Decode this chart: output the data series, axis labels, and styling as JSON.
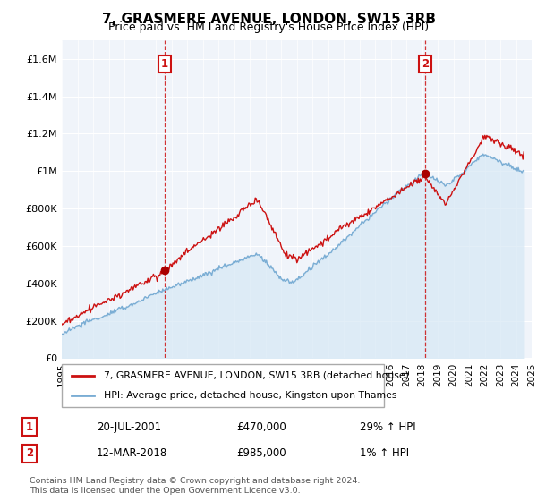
{
  "title": "7, GRASMERE AVENUE, LONDON, SW15 3RB",
  "subtitle": "Price paid vs. HM Land Registry's House Price Index (HPI)",
  "footer": "Contains HM Land Registry data © Crown copyright and database right 2024.\nThis data is licensed under the Open Government Licence v3.0.",
  "legend_line1": "7, GRASMERE AVENUE, LONDON, SW15 3RB (detached house)",
  "legend_line2": "HPI: Average price, detached house, Kingston upon Thames",
  "transaction1_date": "20-JUL-2001",
  "transaction1_price": "£470,000",
  "transaction1_hpi": "29% ↑ HPI",
  "transaction1_x": 2001.55,
  "transaction1_y": 470000,
  "transaction2_date": "12-MAR-2018",
  "transaction2_price": "£985,000",
  "transaction2_hpi": "1% ↑ HPI",
  "transaction2_x": 2018.19,
  "transaction2_y": 985000,
  "hpi_color": "#7aadd4",
  "hpi_fill_color": "#d6e8f5",
  "price_color": "#cc1111",
  "vline_color": "#cc1111",
  "dot_color": "#aa0000",
  "xmin": 1995,
  "xmax": 2025,
  "ymin": 0,
  "ymax": 1700000,
  "yticks": [
    0,
    200000,
    400000,
    600000,
    800000,
    1000000,
    1200000,
    1400000,
    1600000
  ],
  "ytick_labels": [
    "£0",
    "£200K",
    "£400K",
    "£600K",
    "£800K",
    "£1M",
    "£1.2M",
    "£1.4M",
    "£1.6M"
  ],
  "bg_color": "#f0f4fa"
}
